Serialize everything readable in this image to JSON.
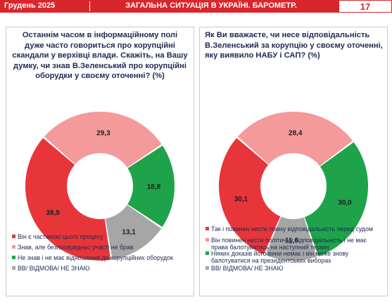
{
  "header": {
    "date": "Грудень 2025",
    "title": "ЗАГАЛЬНА СИТУАЦІЯ В УКРАЇНІ. БАРОМЕТР.",
    "page": "17"
  },
  "colors": {
    "red": "#e8353a",
    "pink": "#f49a9b",
    "green": "#1ea34a",
    "gray": "#a6a6a6",
    "header": "#d9262c",
    "text": "#1f2a52"
  },
  "chart_data": [
    {
      "type": "pie",
      "title": "Останнім часом в інформаційному полі дуже часто говориться про корупційні скандали у верхівці влади. Скажіть, на Вашу думку, чи знав В.Зеленський про корупційні оборудки у своєму оточенні? (%)",
      "labels": [
        "Він є частиною цього процесу",
        "Знав, але безпосередньо участі не брав",
        "Не знав і не має відношення до корупційних оборудок",
        "ВВ/ ВІДМОВА/ НЕ ЗНАЮ"
      ],
      "values": [
        38.9,
        29.3,
        18.8,
        13.1
      ],
      "value_labels": [
        "38,9",
        "29,3",
        "18,8",
        "13,1"
      ],
      "colors": [
        "#e8353a",
        "#f49a9b",
        "#1ea34a",
        "#a6a6a6"
      ],
      "legend": "bottom"
    },
    {
      "type": "pie",
      "title": "Як Ви вважаєте, чи несе відповідальність В.Зеленський за корупцію у своєму оточенні, яку виявило НАБУ і САП? (%)",
      "labels": [
        "Так і повинен нести повну відповідальність перед судом",
        "Він повинен нести політичну відповідальність і не має права балотуватись на наступний термін",
        "Ніяких доказів його вини немає і він може знову балотуватися на президентських виборах",
        "ВВ/ ВІДМОВА/ НЕ ЗНАЮ"
      ],
      "values": [
        30.1,
        28.4,
        30.0,
        11.6
      ],
      "value_labels": [
        "30,1",
        "28,4",
        "30,0",
        "11,6"
      ],
      "colors": [
        "#e8353a",
        "#f49a9b",
        "#1ea34a",
        "#a6a6a6"
      ],
      "legend": "bottom"
    }
  ]
}
